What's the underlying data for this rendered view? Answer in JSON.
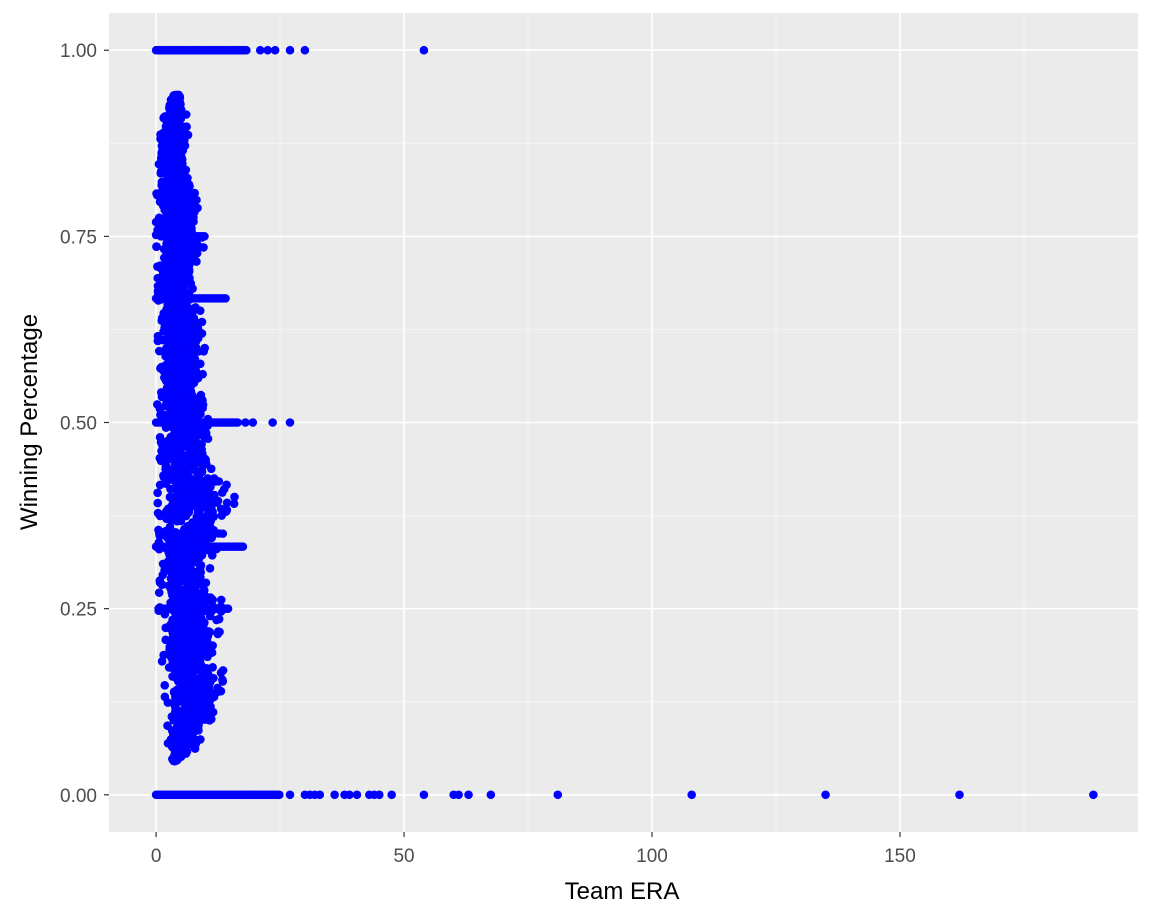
{
  "chart_data": {
    "type": "scatter",
    "xlabel": "Team ERA",
    "ylabel": "Winning Percentage",
    "xlim": [
      -9.5,
      198
    ],
    "ylim": [
      -0.05,
      1.05
    ],
    "x_ticks": [
      0,
      50,
      100,
      150
    ],
    "x_tick_labels": [
      "0",
      "50",
      "100",
      "150"
    ],
    "y_ticks": [
      0,
      0.25,
      0.5,
      0.75,
      1
    ],
    "y_tick_labels": [
      "0.00",
      "0.25",
      "0.50",
      "0.75",
      "1.00"
    ],
    "grid": true,
    "legend": "none",
    "colors": {
      "panel": "#ebebeb",
      "grid_major": "#ffffff",
      "grid_minor": "#f5f5f5",
      "point": "#0000ff",
      "tick": "#333333"
    },
    "bands": [
      {
        "y": 1.0,
        "x_from": 0,
        "x_to": 18.5
      },
      {
        "y": 0.0,
        "x_from": 0,
        "x_to": 25
      },
      {
        "y": 0.5,
        "x_from": 0,
        "x_to": 16.5
      },
      {
        "y": 0.6667,
        "x_from": 0,
        "x_to": 14
      },
      {
        "y": 0.3333,
        "x_from": 0,
        "x_to": 17.5
      },
      {
        "y": 0.25,
        "x_from": 0.5,
        "x_to": 14.5
      },
      {
        "y": 0.75,
        "x_from": 1,
        "x_to": 10
      }
    ],
    "cluster": {
      "rows": [
        {
          "y": 0.94,
          "x": [
            3.4,
            5.2
          ]
        },
        {
          "y": 0.9,
          "x": [
            1.0,
            7.0
          ]
        },
        {
          "y": 0.85,
          "x": [
            0.6,
            6.5
          ]
        },
        {
          "y": 0.8,
          "x": [
            0.0,
            8.8
          ]
        },
        {
          "y": 0.75,
          "x": [
            0.0,
            10.0
          ]
        },
        {
          "y": 0.7,
          "x": [
            0.3,
            8.5
          ]
        },
        {
          "y": 0.65,
          "x": [
            0.5,
            9.0
          ]
        },
        {
          "y": 0.6,
          "x": [
            0.3,
            11.0
          ]
        },
        {
          "y": 0.55,
          "x": [
            0.5,
            9.5
          ]
        },
        {
          "y": 0.5,
          "x": [
            0.0,
            12.0
          ]
        },
        {
          "y": 0.45,
          "x": [
            0.3,
            10.5
          ]
        },
        {
          "y": 0.4,
          "x": [
            0.3,
            16.0
          ]
        },
        {
          "y": 0.35,
          "x": [
            0.5,
            14.5
          ]
        },
        {
          "y": 0.3,
          "x": [
            0.8,
            11.0
          ]
        },
        {
          "y": 0.25,
          "x": [
            0.5,
            14.5
          ]
        },
        {
          "y": 0.2,
          "x": [
            1.0,
            12.0
          ]
        },
        {
          "y": 0.15,
          "x": [
            1.5,
            13.5
          ]
        },
        {
          "y": 0.1,
          "x": [
            2.0,
            11.5
          ]
        },
        {
          "y": 0.06,
          "x": [
            2.5,
            8.0
          ]
        },
        {
          "y": 0.045,
          "x": [
            3.5,
            4.5
          ]
        }
      ],
      "density_points": 2600
    },
    "outliers": [
      {
        "x": 21.0,
        "y": 1.0
      },
      {
        "x": 22.5,
        "y": 1.0
      },
      {
        "x": 24.0,
        "y": 1.0
      },
      {
        "x": 27.0,
        "y": 1.0
      },
      {
        "x": 30.0,
        "y": 1.0
      },
      {
        "x": 54.0,
        "y": 1.0
      },
      {
        "x": 18.0,
        "y": 0.5
      },
      {
        "x": 19.5,
        "y": 0.5
      },
      {
        "x": 23.5,
        "y": 0.5
      },
      {
        "x": 27.0,
        "y": 0.5
      },
      {
        "x": 15.8,
        "y": 0.4
      },
      {
        "x": 10.8,
        "y": 0.363
      },
      {
        "x": 11.5,
        "y": 0.111
      },
      {
        "x": 10.8,
        "y": 0.1
      },
      {
        "x": 10.0,
        "y": 0.45
      },
      {
        "x": 9.8,
        "y": 0.6
      },
      {
        "x": 13.5,
        "y": 0.167
      },
      {
        "x": 27.0,
        "y": 0.0
      },
      {
        "x": 30.0,
        "y": 0.0
      },
      {
        "x": 31.0,
        "y": 0.0
      },
      {
        "x": 32.0,
        "y": 0.0
      },
      {
        "x": 33.0,
        "y": 0.0
      },
      {
        "x": 36.0,
        "y": 0.0
      },
      {
        "x": 38.0,
        "y": 0.0
      },
      {
        "x": 39.0,
        "y": 0.0
      },
      {
        "x": 40.5,
        "y": 0.0
      },
      {
        "x": 43.0,
        "y": 0.0
      },
      {
        "x": 44.0,
        "y": 0.0
      },
      {
        "x": 45.0,
        "y": 0.0
      },
      {
        "x": 47.5,
        "y": 0.0
      },
      {
        "x": 54.0,
        "y": 0.0
      },
      {
        "x": 60.0,
        "y": 0.0
      },
      {
        "x": 61.0,
        "y": 0.0
      },
      {
        "x": 63.0,
        "y": 0.0
      },
      {
        "x": 67.5,
        "y": 0.0
      },
      {
        "x": 81.0,
        "y": 0.0
      },
      {
        "x": 108.0,
        "y": 0.0
      },
      {
        "x": 135.0,
        "y": 0.0
      },
      {
        "x": 162.0,
        "y": 0.0
      },
      {
        "x": 189.0,
        "y": 0.0
      }
    ]
  }
}
